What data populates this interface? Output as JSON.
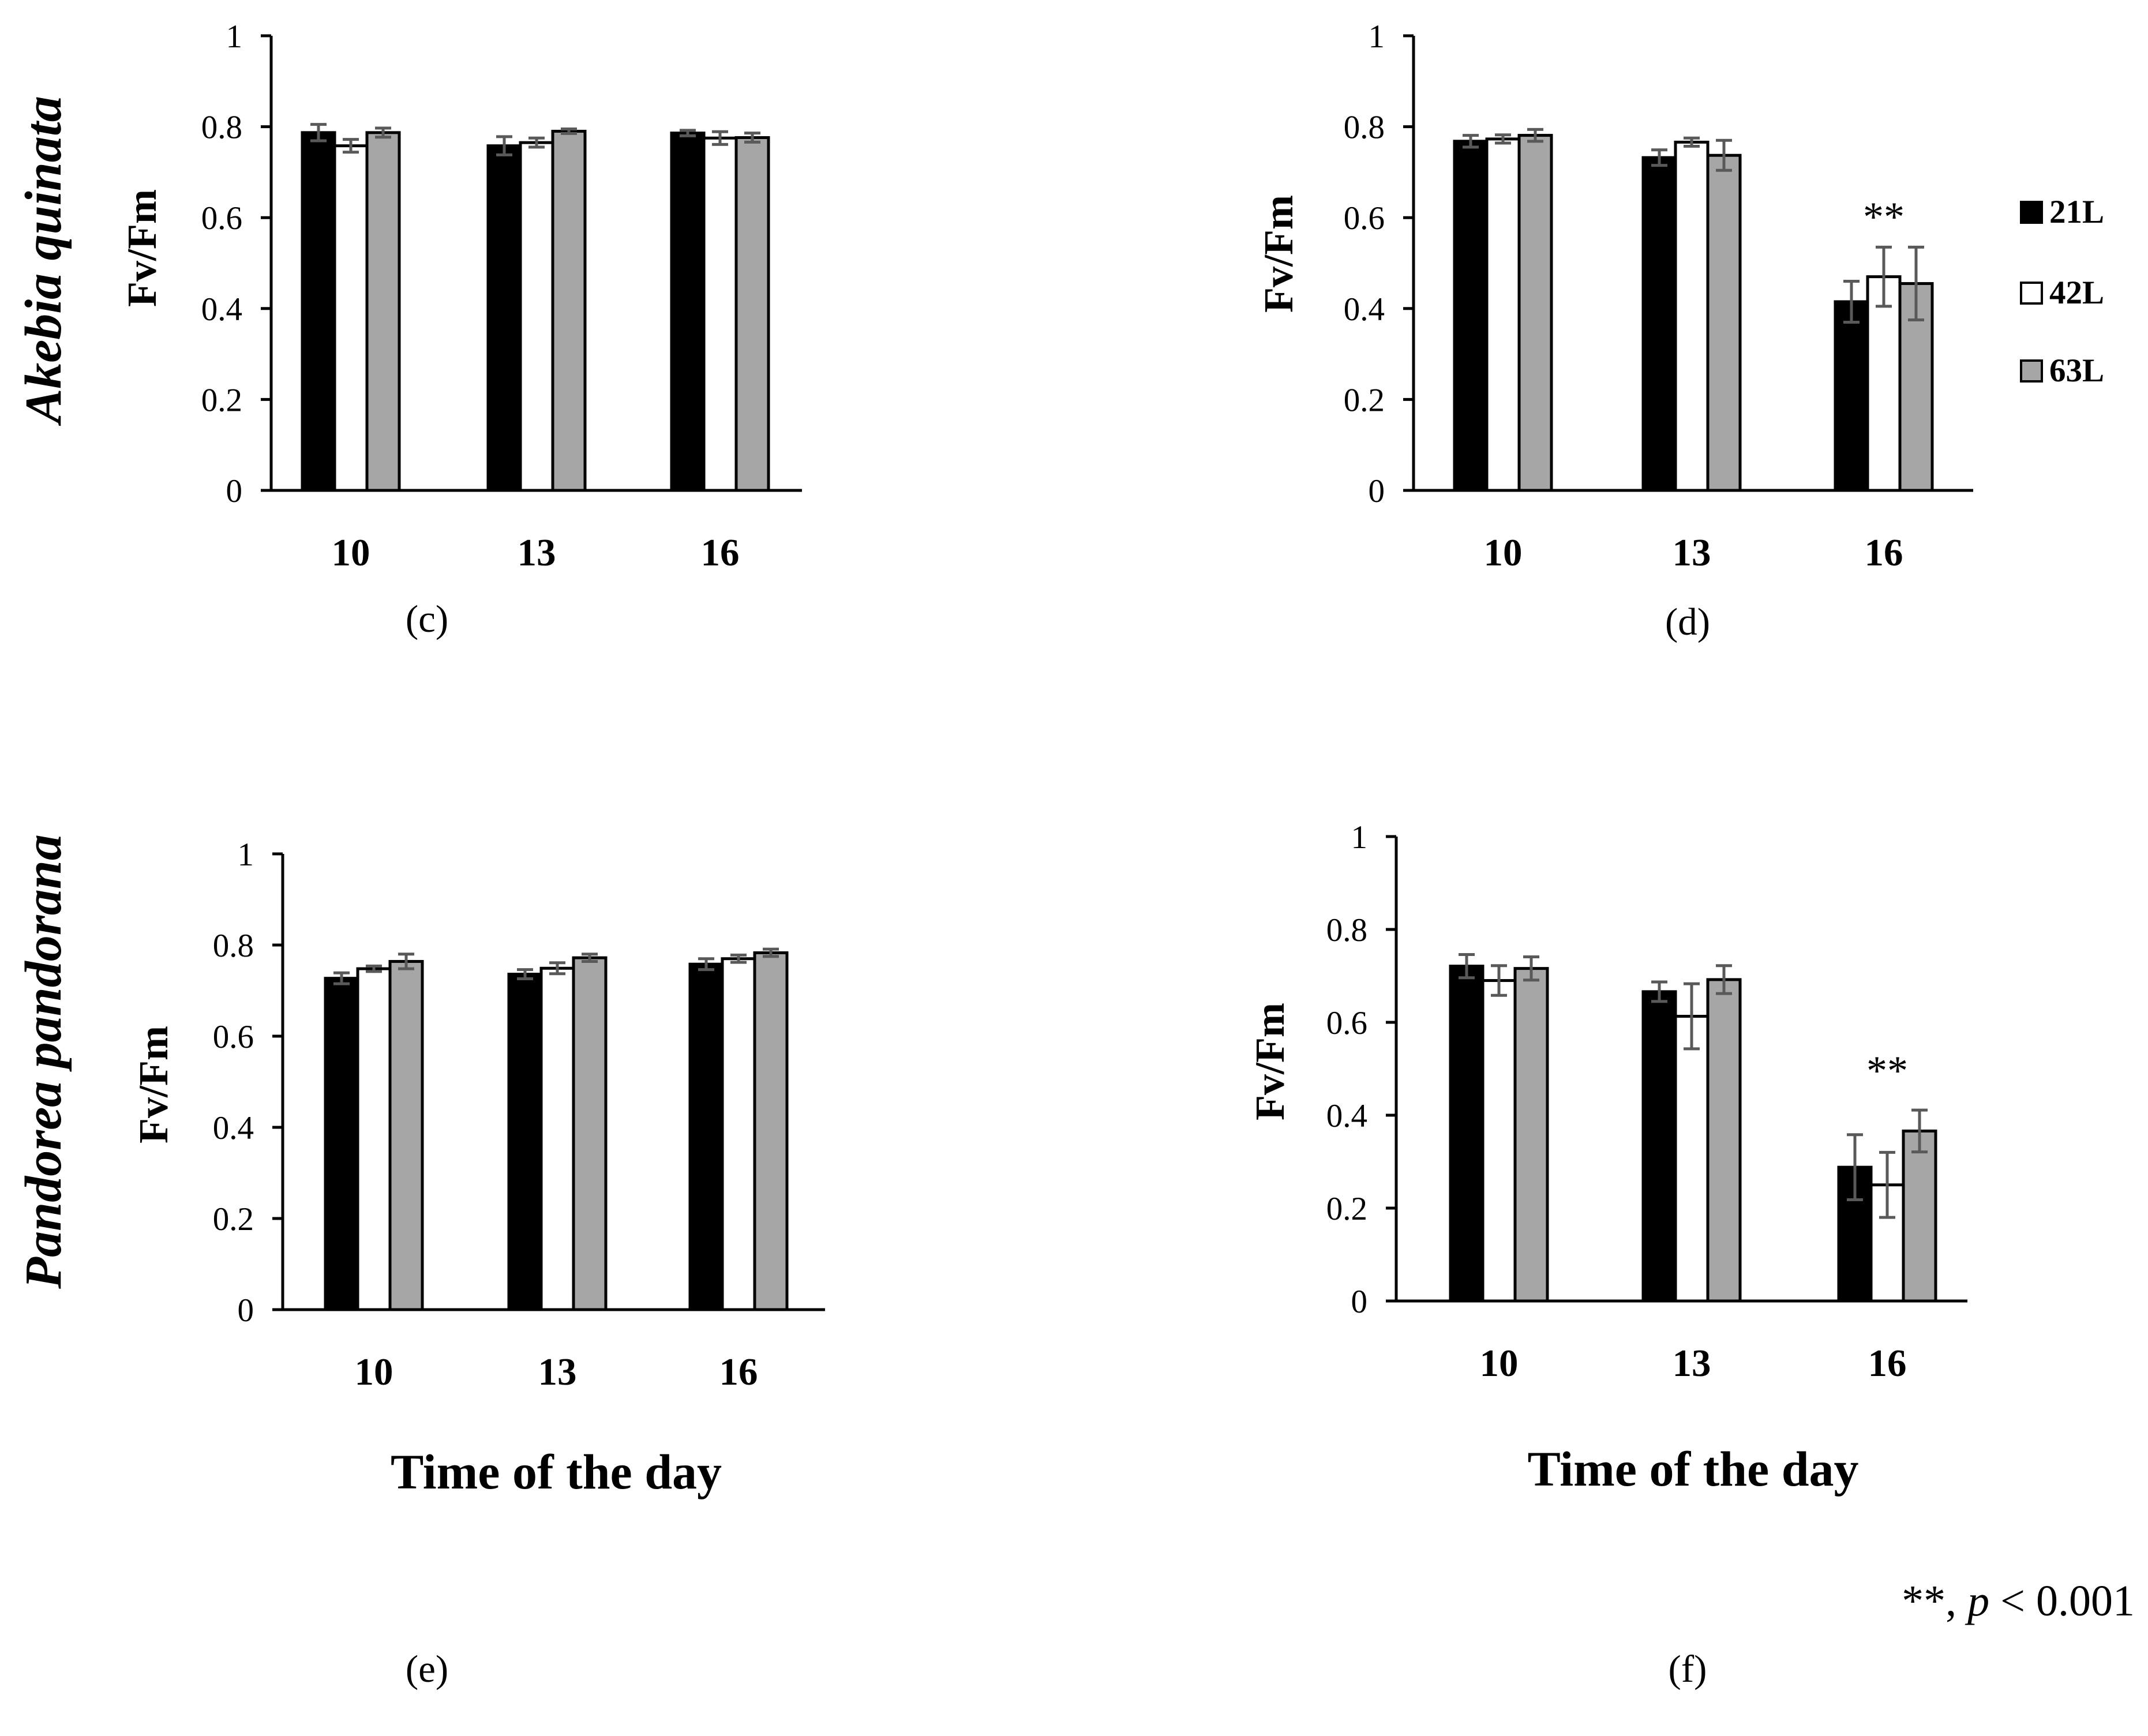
{
  "species": [
    "Akebia quinata",
    "Pandorea pandorana"
  ],
  "legend": [
    {
      "name": "21L",
      "color": "#000000"
    },
    {
      "name": "42L",
      "color": "#ffffff"
    },
    {
      "name": "63L",
      "color": "#a6a6a6"
    }
  ],
  "footnote": {
    "stars": "**, ",
    "p": "p",
    "rest": " < 0.001"
  },
  "chart_data": [
    {
      "panel": "(c)",
      "type": "bar",
      "species": "Akebia quinata",
      "categories": [
        "10",
        "13",
        "16"
      ],
      "ylabel": "Fv/Fm",
      "xlabel": "",
      "ylim": [
        0,
        1
      ],
      "yticks": [
        "0",
        "0.2",
        "0.4",
        "0.6",
        "0.8",
        "1"
      ],
      "series": [
        {
          "name": "21L",
          "values": [
            0.787,
            0.758,
            0.786
          ],
          "errors": [
            0.018,
            0.02,
            0.006
          ]
        },
        {
          "name": "42L",
          "values": [
            0.758,
            0.765,
            0.775
          ],
          "errors": [
            0.014,
            0.01,
            0.014
          ]
        },
        {
          "name": "63L",
          "values": [
            0.787,
            0.79,
            0.776
          ],
          "errors": [
            0.01,
            0.005,
            0.01
          ]
        }
      ],
      "significance": []
    },
    {
      "panel": "(d)",
      "type": "bar",
      "species": "Akebia quinata",
      "categories": [
        "10",
        "13",
        "16"
      ],
      "ylabel": "Fv/Fm",
      "xlabel": "",
      "ylim": [
        0,
        1
      ],
      "yticks": [
        "0",
        "0.2",
        "0.4",
        "0.6",
        "0.8",
        "1"
      ],
      "series": [
        {
          "name": "21L",
          "values": [
            0.768,
            0.732,
            0.415
          ],
          "errors": [
            0.013,
            0.017,
            0.045
          ]
        },
        {
          "name": "42L",
          "values": [
            0.773,
            0.766,
            0.47
          ],
          "errors": [
            0.009,
            0.009,
            0.065
          ]
        },
        {
          "name": "63L",
          "values": [
            0.781,
            0.737,
            0.455
          ],
          "errors": [
            0.013,
            0.033,
            0.08
          ]
        }
      ],
      "significance": [
        {
          "category": "16",
          "text": "**"
        }
      ]
    },
    {
      "panel": "(e)",
      "type": "bar",
      "species": "Pandorea pandorana",
      "categories": [
        "10",
        "13",
        "16"
      ],
      "ylabel": "Fv/Fm",
      "xlabel": "Time of the day",
      "ylim": [
        0,
        1
      ],
      "yticks": [
        "0",
        "0.2",
        "0.4",
        "0.6",
        "0.8",
        "1"
      ],
      "series": [
        {
          "name": "21L",
          "values": [
            0.727,
            0.736,
            0.758
          ],
          "errors": [
            0.012,
            0.01,
            0.012
          ]
        },
        {
          "name": "42L",
          "values": [
            0.748,
            0.749,
            0.77
          ],
          "errors": [
            0.006,
            0.012,
            0.008
          ]
        },
        {
          "name": "63L",
          "values": [
            0.764,
            0.772,
            0.783
          ],
          "errors": [
            0.016,
            0.008,
            0.008
          ]
        }
      ],
      "significance": []
    },
    {
      "panel": "(f)",
      "type": "bar",
      "species": "Pandorea pandorana",
      "categories": [
        "10",
        "13",
        "16"
      ],
      "ylabel": "Fv/Fm",
      "xlabel": "Time of the day",
      "ylim": [
        0,
        1
      ],
      "yticks": [
        "0",
        "0.2",
        "0.4",
        "0.6",
        "0.8",
        "1"
      ],
      "series": [
        {
          "name": "21L",
          "values": [
            0.721,
            0.666,
            0.288
          ],
          "errors": [
            0.025,
            0.021,
            0.07
          ]
        },
        {
          "name": "42L",
          "values": [
            0.69,
            0.613,
            0.25
          ],
          "errors": [
            0.032,
            0.07,
            0.07
          ]
        },
        {
          "name": "63L",
          "values": [
            0.716,
            0.692,
            0.366
          ],
          "errors": [
            0.025,
            0.03,
            0.045
          ]
        }
      ],
      "significance": [
        {
          "category": "16",
          "text": "**"
        }
      ]
    }
  ]
}
